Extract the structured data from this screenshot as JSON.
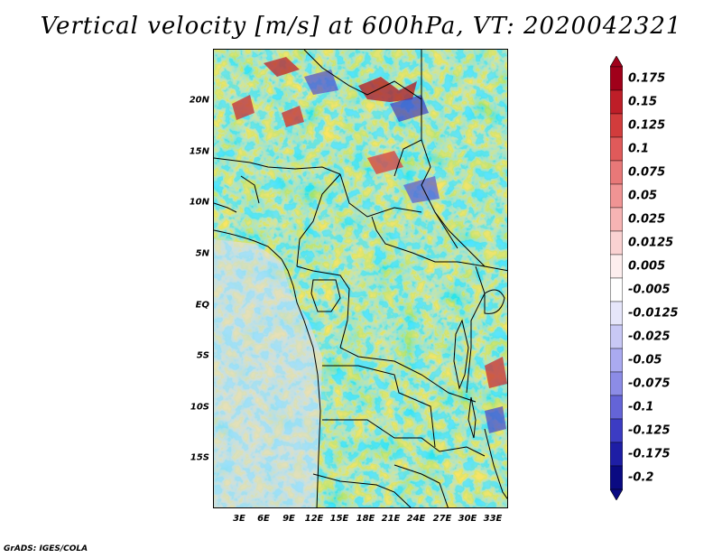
{
  "title": "Vertical velocity [m/s] at 600hPa, VT: 2020042321",
  "credit": "GrADS: IGES/COLA",
  "map": {
    "lat_labels": [
      "20N",
      "15N",
      "10N",
      "5N",
      "EQ",
      "5S",
      "10S",
      "15S"
    ],
    "lon_labels": [
      "3E",
      "6E",
      "9E",
      "12E",
      "15E",
      "18E",
      "21E",
      "24E",
      "27E",
      "30E",
      "33E"
    ]
  },
  "colorbar": {
    "levels": [
      "0.175",
      "0.15",
      "0.125",
      "0.1",
      "0.075",
      "0.05",
      "0.025",
      "0.0125",
      "0.005",
      "-0.005",
      "-0.0125",
      "-0.025",
      "-0.05",
      "-0.075",
      "-0.1",
      "-0.125",
      "-0.175",
      "-0.2"
    ],
    "colors": [
      "#a0001a",
      "#be1e28",
      "#d23c3c",
      "#e05a5a",
      "#e87878",
      "#f09494",
      "#f6b4b4",
      "#fad2d2",
      "#fdeeee",
      "#ffffff",
      "#e6e6fa",
      "#c8c8f5",
      "#aaaaf0",
      "#8c8ce6",
      "#6464d7",
      "#3c3cc3",
      "#1e1ea5",
      "#0a0a82"
    ],
    "end_colors": {
      "top": "#a0001a",
      "bottom": "#0a0a82"
    }
  }
}
